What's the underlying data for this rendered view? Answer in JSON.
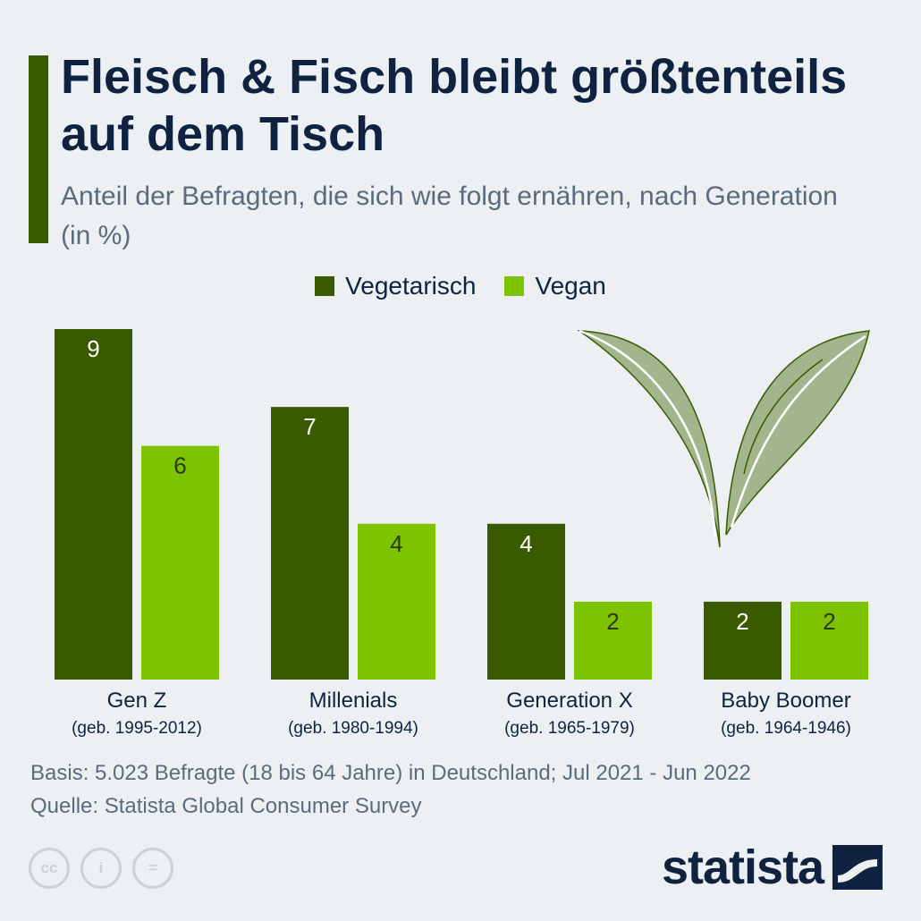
{
  "title": "Fleisch & Fisch bleibt größtenteils auf dem Tisch",
  "subtitle": "Anteil der Befragten, die sich wie folgt ernähren, nach Generation (in %)",
  "legend": {
    "vegetarisch": "Vegetarisch",
    "vegan": "Vegan"
  },
  "colors": {
    "vegetarisch": "#3a5a00",
    "vegan": "#7dc300",
    "accent": "#3a5a00",
    "title": "#0f2341"
  },
  "chart_data": {
    "type": "bar",
    "categories": [
      "Gen Z",
      "Millenials",
      "Generation X",
      "Baby Boomer"
    ],
    "category_sublabels": [
      "(geb. 1995-2012)",
      "(geb. 1980-1994)",
      "(geb. 1965-1979)",
      "(geb. 1964-1946)"
    ],
    "series": [
      {
        "name": "Vegetarisch",
        "values": [
          9,
          7,
          4,
          2
        ]
      },
      {
        "name": "Vegan",
        "values": [
          6,
          4,
          2,
          2
        ]
      }
    ],
    "ylim": [
      0,
      9
    ],
    "grid": false,
    "legend_position": "top-center"
  },
  "footer": {
    "basis": "Basis: 5.023 Befragte (18 bis 64 Jahre) in Deutschland; Jul 2021 - Jun 2022",
    "source": "Quelle: Statista Global Consumer Survey"
  },
  "cc_icons": [
    "cc",
    "i",
    "="
  ],
  "logo": "statista"
}
